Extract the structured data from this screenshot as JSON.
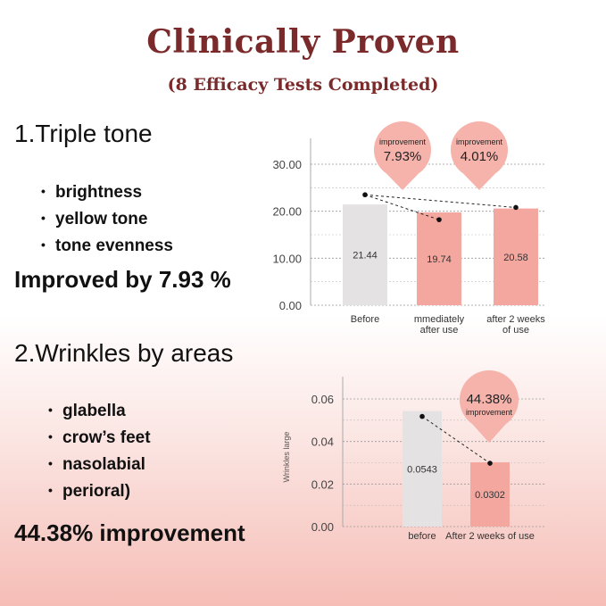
{
  "header": {
    "title": "Clinically Proven",
    "subtitle": "(8 Efficacy Tests Completed)"
  },
  "section1": {
    "heading": "1.Triple tone",
    "bullets": [
      "brightness",
      "yellow tone",
      "tone evenness"
    ],
    "result": "Improved by 7.93 %"
  },
  "section2": {
    "heading": "2.Wrinkles by areas",
    "bullets": [
      "glabella",
      "crow’s feet",
      "nasolabial",
      "perioral)"
    ],
    "result": "44.38% improvement"
  },
  "chart_data": [
    {
      "type": "bar",
      "categories": [
        "Before",
        "mmediately after use",
        "after 2 weeks of use"
      ],
      "category_lines": [
        [
          "Before"
        ],
        [
          "mmediately",
          "after use"
        ],
        [
          "after 2 weeks",
          "of use"
        ]
      ],
      "values": [
        21.44,
        19.74,
        20.58
      ],
      "value_labels": [
        "21.44",
        "19.74",
        "20.58"
      ],
      "line_values": [
        23.5,
        18.2,
        20.8
      ],
      "ylim": [
        0,
        30
      ],
      "yticks": [
        0,
        10,
        20,
        30
      ],
      "ytick_labels": [
        "0.00",
        "10.00",
        "20.00",
        "30.00"
      ],
      "ylabel": "",
      "xlabel": "",
      "grid": true,
      "bar_colors": [
        "#e4e2e2",
        "#f4a79f",
        "#f4a79f"
      ],
      "annotations": [
        {
          "label": "improvement",
          "value": "7.93%"
        },
        {
          "label": "improvement",
          "value": "4.01%"
        }
      ]
    },
    {
      "type": "bar",
      "categories": [
        "before",
        "After 2 weeks of use"
      ],
      "values": [
        0.0543,
        0.0302
      ],
      "value_labels": [
        "0.0543",
        "0.0302"
      ],
      "ylim": [
        0,
        0.065
      ],
      "yticks": [
        0,
        0.02,
        0.04,
        0.06
      ],
      "ytick_labels": [
        "0.00",
        "0.02",
        "0.04",
        "0.06"
      ],
      "ylabel": "Wrinkles large",
      "xlabel": "",
      "grid": true,
      "bar_colors": [
        "#e4e2e2",
        "#f4a79f"
      ],
      "annotations": [
        {
          "label": "improvement",
          "value": "44.38%"
        }
      ]
    }
  ],
  "colors": {
    "title": "#7a2a2a",
    "bar_gray": "#e4e2e2",
    "bar_pink": "#f4a79f",
    "bubble": "#f5b3ab"
  }
}
